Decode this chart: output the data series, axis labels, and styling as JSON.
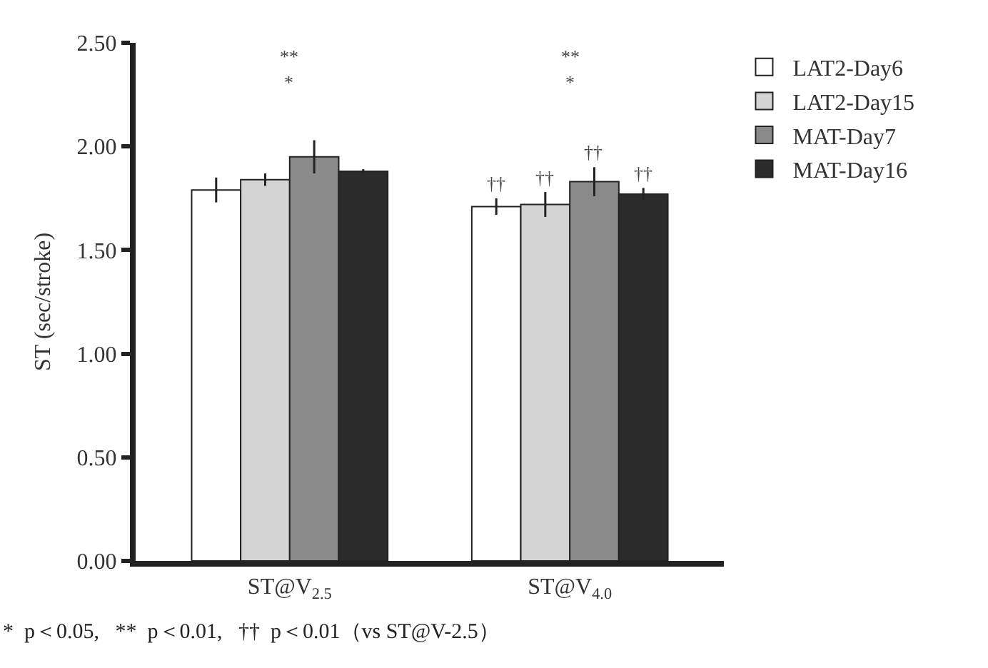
{
  "chart_data": {
    "type": "bar",
    "ylabel": "ST (sec/stroke)",
    "categories": [
      "ST@V$_{2.5}$",
      "ST@V$_{4.0}$"
    ],
    "series": [
      {
        "name": "LAT2-Day6",
        "color": "#ffffff",
        "values": [
          1.79,
          1.71
        ],
        "errors": [
          0.06,
          0.04
        ],
        "value_labels": [
          null,
          "††"
        ]
      },
      {
        "name": "LAT2-Day15",
        "color": "#d4d4d4",
        "values": [
          1.84,
          1.72
        ],
        "errors": [
          0.03,
          0.06
        ],
        "value_labels": [
          null,
          "††"
        ]
      },
      {
        "name": "MAT-Day7",
        "color": "#8a8a8a",
        "values": [
          1.95,
          1.83
        ],
        "errors": [
          0.08,
          0.07
        ],
        "value_labels": [
          null,
          "††"
        ]
      },
      {
        "name": "MAT-Day16",
        "color": "#2b2b2b",
        "values": [
          1.88,
          1.77
        ],
        "errors": [
          0.01,
          0.03
        ],
        "value_labels": [
          null,
          "††"
        ]
      }
    ],
    "ylim": [
      0,
      2.5
    ],
    "yticks": [
      {
        "value": 0,
        "label": "0.00"
      },
      {
        "value": 0.5,
        "label": "0.50"
      },
      {
        "value": 1,
        "label": "1.00"
      },
      {
        "value": 1.5,
        "label": "1.50"
      },
      {
        "value": 2,
        "label": "2.00"
      },
      {
        "value": 2.5,
        "label": "2.50"
      }
    ],
    "legend": "top right",
    "annotations": [
      "**",
      "*",
      "**",
      "*",
      "*  p＜0.05,   **  p＜0.01,   ††  p＜0.01（vs ST@V-2.5）"
    ]
  }
}
